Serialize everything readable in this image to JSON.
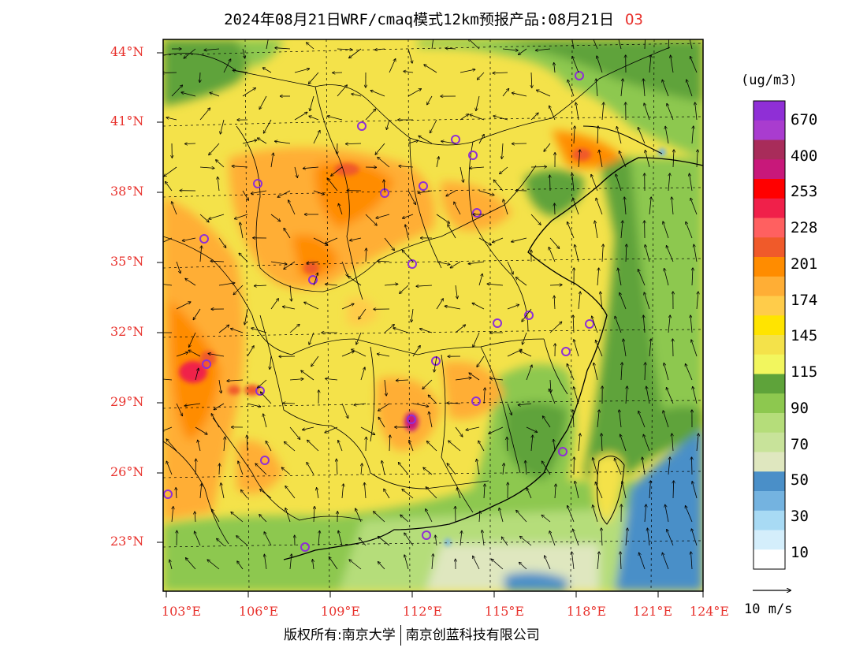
{
  "title": {
    "text": "2024年08月21日WRF/cmaq模式12km预报产品:08月21日",
    "species": "O3"
  },
  "axes": {
    "lat_labels": [
      "44°N",
      "41°N",
      "38°N",
      "35°N",
      "32°N",
      "29°N",
      "26°N",
      "23°N"
    ],
    "lon_labels": [
      "103°E",
      "106°E",
      "109°E",
      "112°E",
      "115°E",
      "118°E",
      "121°E",
      "124°E"
    ]
  },
  "colorbar": {
    "unit": "(ug/m3)",
    "labels": [
      "670",
      "400",
      "253",
      "228",
      "201",
      "174",
      "145",
      "115",
      "90",
      "70",
      "50",
      "30",
      "10"
    ],
    "colors": [
      "#8f2fd6",
      "#a93ccf",
      "#a82c5a",
      "#c8187a",
      "#ff0000",
      "#f0204a",
      "#ff6060",
      "#f05a2a",
      "#ff8c00",
      "#ffae35",
      "#ffcc4a",
      "#ffe400",
      "#f4e24a",
      "#f2f65e",
      "#5ea33a",
      "#8dc84f",
      "#b5dd7a",
      "#c8e39a",
      "#dfe7bf",
      "#4a8fc8",
      "#74b3e0",
      "#a8daf4",
      "#d4eefb",
      "#ffffff"
    ]
  },
  "wind_reference": {
    "label": "10 m/s"
  },
  "colors": {
    "label_red": "#e8322d",
    "yellow": "#f4e24a",
    "orange": "#ffae35",
    "green": "#5ea33a",
    "sea": "#4a8fc8"
  },
  "footer": {
    "left": "版权所有:南京大学",
    "right": "南京创蓝科技有限公司"
  }
}
